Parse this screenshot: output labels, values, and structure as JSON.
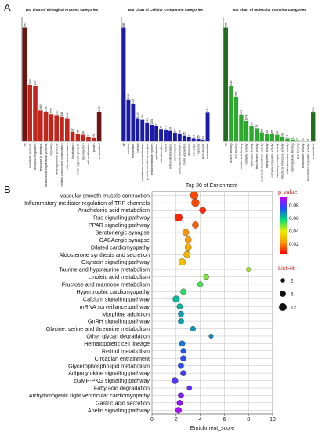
{
  "panel_labels": {
    "a": "A",
    "b": "B"
  },
  "colors": {
    "bp": "#c0261c",
    "bp_dark": "#6e1510",
    "cc": "#1b1ba6",
    "mf": "#2ea82e",
    "mf_dark": "#1e6e1e"
  },
  "chart_data": [
    {
      "type": "bar",
      "title": "Bar chart of Biological Process categories",
      "categories": [
        "all",
        "metabolic process",
        "biological regulation",
        "response to stimulus",
        "multicellular organismal process",
        "signaling",
        "developmental process",
        "cellular component organization",
        "cell communication",
        "localization",
        "multi-organism process",
        "reproduction",
        "cell proliferation",
        "growth",
        "unclassified"
      ],
      "values": [
        686,
        342,
        337,
        188,
        178,
        165,
        155,
        148,
        140,
        57,
        45,
        40,
        27,
        20,
        179
      ],
      "ylim": [
        0,
        750
      ]
    },
    {
      "type": "bar",
      "title": "Bar chart of Cellular Component categories",
      "categories": [
        "all",
        "nucleus",
        "membrane",
        "cytosol",
        "membrane-enclosed lumen",
        "protein-containing complex",
        "endomembrane system",
        "cytoskeleton",
        "mitochondrion",
        "vesicle",
        "extracellular space",
        "chromosome",
        "endoplasmic reticulum",
        "Golgi apparatus",
        "ribosome",
        "envelope",
        "vacuole",
        "lipid droplet",
        "unclassified"
      ],
      "values": [
        686,
        253,
        223,
        140,
        130,
        112,
        100,
        92,
        75,
        72,
        63,
        52,
        48,
        35,
        27,
        17,
        15,
        10,
        174
      ],
      "ylim": [
        0,
        750
      ]
    },
    {
      "type": "bar",
      "title": "Bar chart of Molecular Function categories",
      "categories": [
        "all",
        "protein binding",
        "ion binding",
        "nucleic acid binding",
        "catalytic activity",
        "hydrolase activity",
        "transferase activity",
        "molecular transducer activity",
        "transporter activity",
        "enzyme regulator activity",
        "signaling receptor activity",
        "structural molecule activity",
        "oxidoreductase activity",
        "carbohydrate binding",
        "lipid binding",
        "antioxidant activity",
        "translation regulator activity",
        "unclassified"
      ],
      "values": [
        686,
        335,
        268,
        159,
        124,
        95,
        79,
        54,
        48,
        45,
        40,
        30,
        17,
        11,
        7,
        5,
        3,
        175
      ],
      "ylim": [
        0,
        750
      ]
    },
    {
      "type": "scatter",
      "title": "Top 30 of Enrichment",
      "xlabel": "Enrichment_score",
      "xlim": [
        0,
        10
      ],
      "xticks": [
        0,
        2,
        4,
        6,
        8,
        10
      ],
      "categories": [
        "Vascular smooth muscle contraction",
        "Inflammatory mediator regulation of TRP channels",
        "Arachidonic acid metabolism",
        "Ras signaling pathway",
        "PPAR signaling pathway",
        "Serotonergic synapse",
        "GABAergic synapse",
        "Dilated cardiomyopathy",
        "Aldosterone synthesis and secretion",
        "Oxytocin signaling pathway",
        "Taurine and hypotaurine metabolism",
        "Linoleic acid metabolism",
        "Fructose and mannose metabolism",
        "Hypertrophic cardiomyopathy",
        "Calcium signaling pathway",
        "mRNA surveillance pathway",
        "Morphine addiction",
        "GnRH signaling pathway",
        "Glycine, serine and threonine metabolism",
        "Other glycan degradation",
        "Hematopoietic cell lineage",
        "Retinol metabolism",
        "Circadian entrainment",
        "Glycerophospholipid metabolism",
        "Adipocytokine signaling pathway",
        "cGMP-PKG signaling pathway",
        "Fatty acid degradation",
        "Arrhythmogenic right ventricular cardiomyopathy",
        "Gastric acid secretion",
        "Apelin signaling pathway"
      ],
      "x": [
        3.5,
        3.6,
        4.2,
        2.2,
        3.6,
        2.8,
        3.0,
        3.0,
        2.9,
        2.5,
        8.0,
        4.5,
        4.0,
        2.6,
        2.0,
        2.3,
        2.4,
        2.4,
        3.4,
        4.9,
        2.5,
        2.6,
        2.6,
        2.4,
        2.6,
        1.9,
        3.1,
        2.4,
        2.3,
        2.2
      ],
      "listhit": [
        12,
        12,
        7,
        12,
        7,
        7,
        7,
        7,
        7,
        8,
        2,
        4,
        4,
        5,
        8,
        5,
        5,
        5,
        4,
        2,
        5,
        4,
        5,
        5,
        5,
        7,
        3,
        5,
        5,
        6
      ],
      "pvalue": [
        0.013,
        0.013,
        0.01,
        0.009,
        0.016,
        0.022,
        0.023,
        0.027,
        0.028,
        0.03,
        0.045,
        0.048,
        0.052,
        0.055,
        0.062,
        0.063,
        0.065,
        0.065,
        0.066,
        0.068,
        0.07,
        0.074,
        0.075,
        0.076,
        0.078,
        0.08,
        0.082,
        0.085,
        0.087,
        0.09
      ],
      "colorbar": {
        "title": "p-value",
        "ticks": [
          "0.08",
          "0.06",
          "0.04",
          "0.02"
        ],
        "range": [
          0.005,
          0.092
        ]
      },
      "size_legend": {
        "title": "ListHit",
        "values": [
          2,
          6,
          12
        ]
      }
    }
  ]
}
